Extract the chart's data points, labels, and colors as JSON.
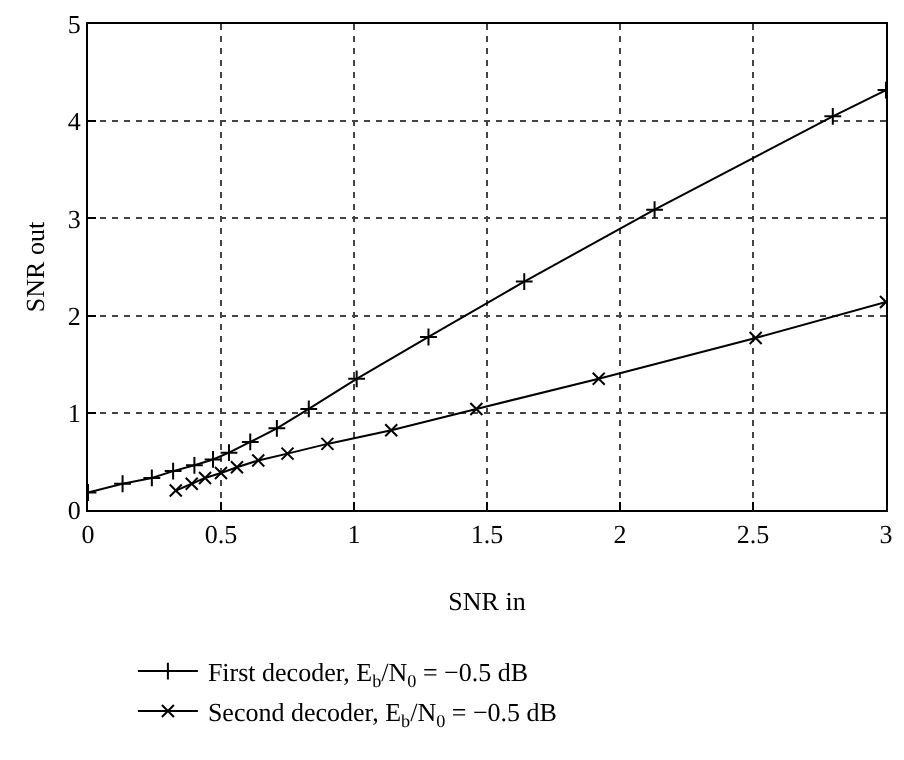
{
  "chart_data": {
    "type": "line",
    "xlabel": "SNR in",
    "ylabel": "SNR out",
    "xlim": [
      0,
      3
    ],
    "ylim": [
      0,
      5
    ],
    "xticks": [
      0,
      0.5,
      1,
      1.5,
      2,
      2.5,
      3
    ],
    "yticks": [
      0,
      1,
      2,
      3,
      4,
      5
    ],
    "grid": true,
    "legend": "bottom",
    "line_style": "solid",
    "series": [
      {
        "name": "First decoder, E$_{b}$/N$_{0}$ = −0.5 dB",
        "color": "#000000",
        "marker": "cross",
        "x": [
          0,
          0.13,
          0.24,
          0.32,
          0.4,
          0.47,
          0.53,
          0.61,
          0.71,
          0.83,
          1.01,
          1.28,
          1.64,
          2.13,
          2.8,
          3
        ],
        "values": [
          0.18,
          0.27,
          0.33,
          0.4,
          0.46,
          0.52,
          0.59,
          0.7,
          0.84,
          1.04,
          1.35,
          1.78,
          2.35,
          3.09,
          4.05,
          4.32
        ]
      },
      {
        "name": "Second decoder, E$_{b}$/N$_{0}$ = −0.5 dB",
        "color": "#000000",
        "marker": "x",
        "x": [
          0.33,
          0.39,
          0.44,
          0.5,
          0.56,
          0.64,
          0.75,
          0.9,
          1.14,
          1.46,
          1.92,
          2.51,
          3
        ],
        "values": [
          0.2,
          0.27,
          0.33,
          0.38,
          0.44,
          0.51,
          0.58,
          0.68,
          0.82,
          1.04,
          1.35,
          1.77,
          2.14
        ]
      }
    ]
  }
}
